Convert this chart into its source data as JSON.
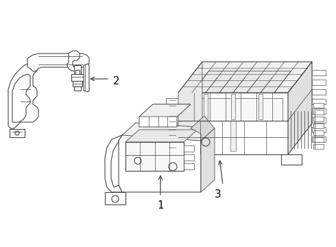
{
  "background_color": "#ffffff",
  "line_color": "#444444",
  "line_width": 0.8,
  "fill_color": "#ffffff",
  "shade_color": "#e0e0e0",
  "shade_color2": "#cccccc"
}
